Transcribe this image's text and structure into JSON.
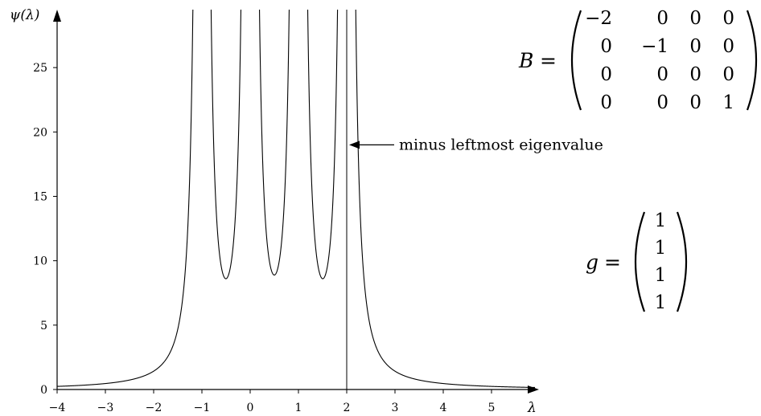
{
  "chart_data": {
    "type": "line",
    "title": "",
    "xlabel": "λ",
    "ylabel": "ψ(λ)",
    "xlim": [
      -4,
      5.9
    ],
    "ylim": [
      0,
      29.5
    ],
    "xticks": [
      -4,
      -3,
      -2,
      -1,
      0,
      1,
      2,
      3,
      4,
      5
    ],
    "xtick_labels": [
      "−4",
      "−3",
      "−2",
      "−1",
      "0",
      "1",
      "2",
      "3",
      "4",
      "5"
    ],
    "yticks": [
      0,
      5,
      10,
      15,
      20,
      25
    ],
    "ytick_labels": [
      "0",
      "5",
      "10",
      "15",
      "20",
      "25"
    ],
    "grid": false,
    "function": {
      "matrix_diagonal": [
        -2,
        -1,
        0,
        1
      ],
      "vector": [
        1,
        1,
        1,
        1
      ]
    },
    "poles": [
      -1,
      0,
      1,
      2
    ],
    "local_minima": [
      {
        "x": -0.55,
        "y": 8.7
      },
      {
        "x": 0.47,
        "y": 8.9
      },
      {
        "x": 1.47,
        "y": 8.6
      }
    ],
    "vertical_line_x": 2,
    "annotation": {
      "text": "minus leftmost eigenvalue",
      "points_to_x": 2,
      "points_to_y": 19
    }
  },
  "matrix_B": {
    "name": "B",
    "equals": "=",
    "rows": [
      [
        "−2",
        "0",
        "0",
        "0"
      ],
      [
        "0",
        "−1",
        "0",
        "0"
      ],
      [
        "0",
        "0",
        "0",
        "0"
      ],
      [
        "0",
        "0",
        "0",
        "1"
      ]
    ]
  },
  "vector_g": {
    "name": "g",
    "equals": "=",
    "rows": [
      "1",
      "1",
      "1",
      "1"
    ]
  }
}
